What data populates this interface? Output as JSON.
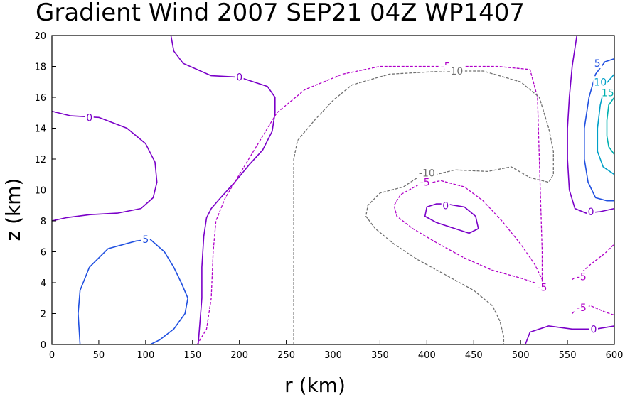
{
  "chart_data": {
    "type": "contour",
    "title": "Gradient Wind 2007 SEP21 04Z  WP1407",
    "xlabel": "r (km)",
    "ylabel": "z (km)",
    "xlim": [
      0,
      600
    ],
    "ylim": [
      0,
      20
    ],
    "x_ticks": [
      0,
      50,
      100,
      150,
      200,
      250,
      300,
      350,
      400,
      450,
      500,
      550,
      600
    ],
    "y_ticks": [
      0,
      2,
      4,
      6,
      8,
      10,
      12,
      14,
      16,
      18,
      20
    ],
    "colors": {
      "zero": "#7a00c8",
      "neg5": "#b000c8",
      "neg10": "#707070",
      "pos5": "#2050e0",
      "pos10": "#00a0c8",
      "pos15": "#00b0b0"
    },
    "contours": [
      {
        "id": "zero-top-mid",
        "level": 0,
        "style": "zero",
        "dashed": false,
        "points": [
          [
            127,
            20
          ],
          [
            130,
            19
          ],
          [
            140,
            18.2
          ],
          [
            170,
            17.4
          ],
          [
            200,
            17.3
          ],
          [
            230,
            16.7
          ],
          [
            238,
            16
          ],
          [
            238,
            15
          ],
          [
            235,
            13.8
          ],
          [
            225,
            12.6
          ],
          [
            210,
            11.6
          ],
          [
            195,
            10.5
          ],
          [
            180,
            9.5
          ],
          [
            170,
            8.8
          ],
          [
            165,
            8.2
          ],
          [
            162,
            7
          ],
          [
            160,
            5
          ],
          [
            160,
            3
          ],
          [
            158,
            1.5
          ],
          [
            156,
            0
          ]
        ],
        "labels": [
          {
            "text": "0",
            "x": 200,
            "y": 17.3
          }
        ]
      },
      {
        "id": "zero-left-lobe",
        "level": 0,
        "style": "zero",
        "dashed": false,
        "points": [
          [
            0,
            15.1
          ],
          [
            20,
            14.8
          ],
          [
            50,
            14.7
          ],
          [
            80,
            14
          ],
          [
            100,
            13
          ],
          [
            110,
            11.8
          ],
          [
            112,
            10.5
          ],
          [
            108,
            9.5
          ],
          [
            95,
            8.8
          ],
          [
            70,
            8.5
          ],
          [
            40,
            8.4
          ],
          [
            15,
            8.2
          ],
          [
            0,
            8
          ]
        ],
        "labels": [
          {
            "text": "0",
            "x": 40,
            "y": 14.7
          }
        ]
      },
      {
        "id": "zero-inner-core",
        "level": 0,
        "style": "zero",
        "dashed": false,
        "closed": true,
        "points": [
          [
            420,
            9.1
          ],
          [
            440,
            8.9
          ],
          [
            452,
            8.3
          ],
          [
            455,
            7.5
          ],
          [
            445,
            7.2
          ],
          [
            430,
            7.5
          ],
          [
            410,
            7.9
          ],
          [
            398,
            8.3
          ],
          [
            400,
            8.9
          ],
          [
            410,
            9.1
          ]
        ],
        "labels": [
          {
            "text": "0",
            "x": 420,
            "y": 9
          }
        ]
      },
      {
        "id": "zero-right-upper",
        "level": 0,
        "style": "zero",
        "dashed": false,
        "points": [
          [
            560,
            20
          ],
          [
            555,
            18
          ],
          [
            552,
            16
          ],
          [
            550,
            14
          ],
          [
            550,
            12
          ],
          [
            552,
            10
          ],
          [
            558,
            8.8
          ],
          [
            570,
            8.5
          ],
          [
            585,
            8.6
          ],
          [
            600,
            8.8
          ]
        ],
        "labels": [
          {
            "text": "0",
            "x": 575,
            "y": 8.6
          }
        ]
      },
      {
        "id": "zero-right-lower",
        "level": 0,
        "style": "zero",
        "dashed": false,
        "points": [
          [
            505,
            0
          ],
          [
            510,
            0.8
          ],
          [
            530,
            1.2
          ],
          [
            555,
            1
          ],
          [
            580,
            1
          ],
          [
            600,
            1.2
          ]
        ],
        "labels": [
          {
            "text": "0",
            "x": 578,
            "y": 1
          }
        ]
      },
      {
        "id": "pos5-left-dome",
        "level": 5,
        "style": "pos5",
        "dashed": false,
        "points": [
          [
            30,
            0
          ],
          [
            28,
            2
          ],
          [
            30,
            3.5
          ],
          [
            40,
            5
          ],
          [
            60,
            6.2
          ],
          [
            90,
            6.7
          ],
          [
            105,
            6.8
          ],
          [
            120,
            6
          ],
          [
            130,
            5
          ],
          [
            138,
            4
          ],
          [
            145,
            3
          ],
          [
            142,
            2
          ],
          [
            130,
            1
          ],
          [
            115,
            0.3
          ],
          [
            105,
            0
          ]
        ],
        "labels": [
          {
            "text": "5",
            "x": 100,
            "y": 6.8
          }
        ]
      },
      {
        "id": "pos5-right",
        "level": 5,
        "style": "pos5",
        "dashed": false,
        "points": [
          [
            600,
            18.5
          ],
          [
            590,
            18.3
          ],
          [
            580,
            17.5
          ],
          [
            573,
            16
          ],
          [
            568,
            14
          ],
          [
            568,
            12
          ],
          [
            572,
            10.5
          ],
          [
            580,
            9.5
          ],
          [
            592,
            9.3
          ],
          [
            600,
            9.3
          ]
        ],
        "labels": [
          {
            "text": "5",
            "x": 582,
            "y": 18.2
          }
        ]
      },
      {
        "id": "pos10-right",
        "level": 10,
        "style": "pos10",
        "dashed": false,
        "points": [
          [
            600,
            17.5
          ],
          [
            590,
            16.8
          ],
          [
            585,
            15.5
          ],
          [
            582,
            14
          ],
          [
            582,
            12.5
          ],
          [
            588,
            11.5
          ],
          [
            600,
            11
          ]
        ],
        "labels": [
          {
            "text": "10",
            "x": 585,
            "y": 17
          }
        ]
      },
      {
        "id": "pos15-right",
        "level": 15,
        "style": "pos15",
        "dashed": false,
        "points": [
          [
            600,
            16
          ],
          [
            594,
            15.5
          ],
          [
            592,
            14.5
          ],
          [
            592,
            13.5
          ],
          [
            594,
            12.8
          ],
          [
            600,
            12.3
          ]
        ],
        "labels": [
          {
            "text": "15",
            "x": 593,
            "y": 16.3
          }
        ]
      },
      {
        "id": "neg5-long",
        "level": -5,
        "style": "neg5",
        "dashed": true,
        "points": [
          [
            155,
            0
          ],
          [
            165,
            1
          ],
          [
            170,
            3
          ],
          [
            172,
            6
          ],
          [
            175,
            8
          ],
          [
            185,
            9.5
          ],
          [
            200,
            11
          ],
          [
            215,
            12.5
          ],
          [
            240,
            15
          ],
          [
            270,
            16.5
          ],
          [
            310,
            17.5
          ],
          [
            350,
            18
          ],
          [
            420,
            18
          ],
          [
            475,
            18
          ],
          [
            510,
            17.8
          ],
          [
            518,
            16
          ],
          [
            520,
            12
          ],
          [
            522,
            8
          ],
          [
            523,
            6
          ],
          [
            523,
            4
          ]
        ],
        "labels": [
          {
            "text": "-5",
            "x": 420,
            "y": 18
          }
        ]
      },
      {
        "id": "neg5-inner-loop",
        "level": -5,
        "style": "neg5",
        "dashed": true,
        "points": [
          [
            523,
            3.7
          ],
          [
            520,
            3.9
          ],
          [
            500,
            4.3
          ],
          [
            470,
            4.8
          ],
          [
            440,
            5.6
          ],
          [
            410,
            6.6
          ],
          [
            385,
            7.5
          ],
          [
            368,
            8.3
          ],
          [
            365,
            9
          ],
          [
            372,
            9.7
          ],
          [
            390,
            10.3
          ],
          [
            415,
            10.6
          ],
          [
            440,
            10.2
          ],
          [
            460,
            9.3
          ],
          [
            480,
            8
          ],
          [
            500,
            6.5
          ],
          [
            515,
            5.2
          ],
          [
            523,
            4.2
          ],
          [
            523,
            3.7
          ]
        ],
        "labels": [
          {
            "text": "-5",
            "x": 398,
            "y": 10.5
          },
          {
            "text": "-5",
            "x": 523,
            "y": 3.7
          }
        ]
      },
      {
        "id": "neg5-right-upper",
        "level": -5,
        "style": "neg5",
        "dashed": true,
        "points": [
          [
            555,
            4.2
          ],
          [
            562,
            4.5
          ],
          [
            575,
            5.2
          ],
          [
            590,
            5.9
          ],
          [
            600,
            6.5
          ]
        ],
        "labels": [
          {
            "text": "-5",
            "x": 565,
            "y": 4.4
          }
        ]
      },
      {
        "id": "neg5-right-lower",
        "level": -5,
        "style": "neg5",
        "dashed": true,
        "points": [
          [
            555,
            2
          ],
          [
            560,
            2.3
          ],
          [
            575,
            2.5
          ],
          [
            590,
            2.1
          ],
          [
            600,
            1.9
          ]
        ],
        "labels": [
          {
            "text": "-5",
            "x": 565,
            "y": 2.4
          }
        ]
      },
      {
        "id": "neg10-outer",
        "level": -10,
        "style": "neg10",
        "dashed": true,
        "points": [
          [
            258,
            0
          ],
          [
            258,
            6
          ],
          [
            258,
            12
          ],
          [
            262,
            13.2
          ],
          [
            280,
            14.5
          ],
          [
            300,
            15.8
          ],
          [
            320,
            16.8
          ],
          [
            360,
            17.5
          ],
          [
            420,
            17.7
          ],
          [
            460,
            17.7
          ],
          [
            500,
            17
          ],
          [
            520,
            16
          ],
          [
            530,
            14
          ],
          [
            535,
            12.5
          ],
          [
            535,
            11
          ],
          [
            530,
            10.5
          ],
          [
            510,
            10.8
          ],
          [
            490,
            11.5
          ],
          [
            465,
            11.2
          ],
          [
            430,
            11.3
          ],
          [
            410,
            11
          ],
          [
            390,
            10.8
          ],
          [
            375,
            10.2
          ],
          [
            350,
            9.8
          ],
          [
            337,
            9
          ],
          [
            335,
            8.3
          ],
          [
            345,
            7.5
          ],
          [
            365,
            6.5
          ],
          [
            390,
            5.5
          ],
          [
            420,
            4.5
          ],
          [
            450,
            3.5
          ],
          [
            470,
            2.5
          ],
          [
            478,
            1.5
          ],
          [
            482,
            0.5
          ],
          [
            482,
            0
          ]
        ],
        "labels": [
          {
            "text": "-10",
            "x": 430,
            "y": 17.7
          },
          {
            "text": "-10",
            "x": 400,
            "y": 11.1
          }
        ]
      }
    ]
  }
}
